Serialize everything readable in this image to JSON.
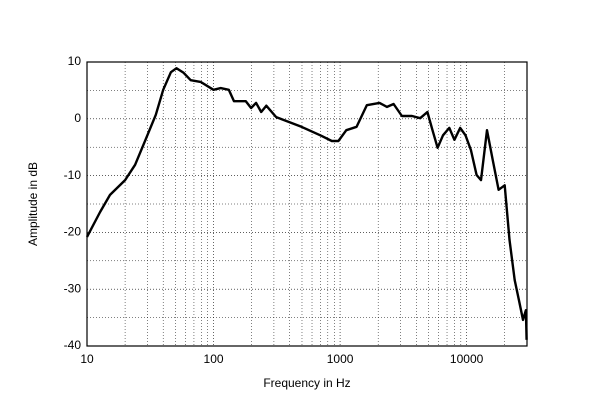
{
  "chart_data": {
    "type": "line",
    "title": null,
    "x_label": "Frequency in Hz",
    "y_label": "Amplitude in dB",
    "x_log": true,
    "grid": true,
    "xlim": [
      10,
      30000
    ],
    "ylim": [
      -40,
      10
    ],
    "xticks": [
      10,
      100,
      1000,
      10000
    ],
    "yticks": [
      -40,
      -30,
      -20,
      -10,
      0,
      10
    ],
    "series": [
      {
        "color": "#000000",
        "x": [
          10,
          12.7,
          15.2,
          20,
          24,
          29,
          35,
          40,
          46,
          51,
          58,
          66,
          79,
          100,
          114,
          132,
          145,
          180,
          198,
          217,
          238,
          261,
          313,
          495,
          712,
          860,
          970,
          1120,
          1350,
          1625,
          2050,
          2350,
          2650,
          3080,
          3700,
          4300,
          4900,
          5370,
          5900,
          6500,
          7300,
          8000,
          8900,
          9800,
          10800,
          12000,
          13000,
          14500,
          16100,
          17900,
          20000,
          21800,
          24000,
          25900,
          27900,
          29400,
          29800
        ],
        "values": [
          -20.8,
          -16.4,
          -13.4,
          -10.8,
          -8.1,
          -3.7,
          0.7,
          5.1,
          8.2,
          8.9,
          8.1,
          6.8,
          6.5,
          5.1,
          5.4,
          5.1,
          3.1,
          3.1,
          1.9,
          2.8,
          1.2,
          2.3,
          0.3,
          -1.4,
          -3.0,
          -3.9,
          -3.9,
          -2.0,
          -1.4,
          2.4,
          2.8,
          2.1,
          2.6,
          0.5,
          0.5,
          0.1,
          1.2,
          -2.0,
          -5.1,
          -2.9,
          -1.6,
          -3.7,
          -1.6,
          -2.9,
          -5.5,
          -9.9,
          -10.8,
          -2.0,
          -7.3,
          -12.5,
          -11.7,
          -21.3,
          -28.4,
          -31.9,
          -35.4,
          -33.7,
          -38.9
        ]
      }
    ]
  }
}
